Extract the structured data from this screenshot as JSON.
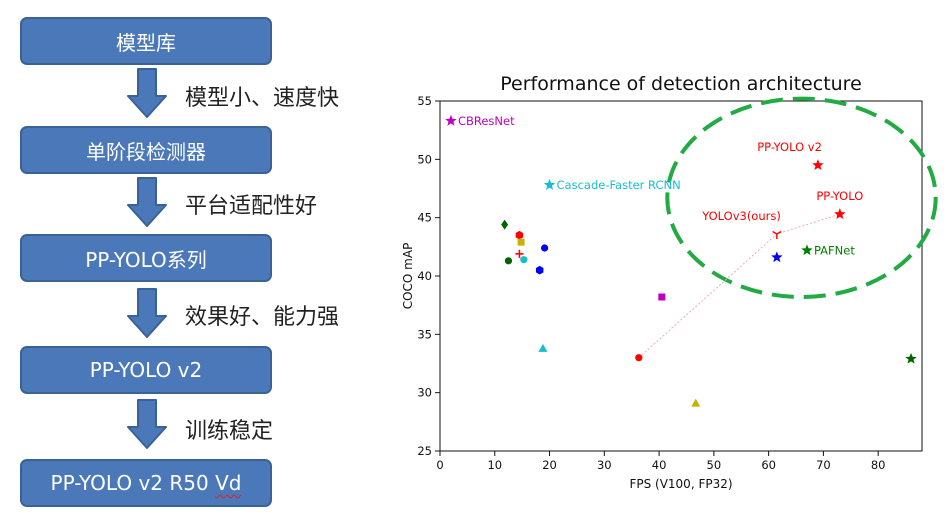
{
  "flow": {
    "steps": [
      {
        "label": "模型库"
      },
      {
        "label": "单阶段检测器"
      },
      {
        "label": "PP-YOLO系列"
      },
      {
        "label": "PP-YOLO v2"
      },
      {
        "label": "PP-YOLO v2 R50",
        "suffix": "Vd"
      }
    ],
    "notes": [
      "模型小、速度快",
      "平台适配性好",
      "效果好、能力强",
      "训练稳定"
    ],
    "colors": {
      "box_fill": "#4a78b8",
      "box_border": "#3b6297",
      "arrow_fill": "#4a78b8"
    }
  },
  "chart_data": {
    "type": "scatter",
    "title": "Performance of detection architecture",
    "xlabel": "FPS (V100, FP32)",
    "ylabel": "COCO mAP",
    "xlim": [
      0,
      88
    ],
    "ylim": [
      25,
      55
    ],
    "xticks": [
      0,
      10,
      20,
      30,
      40,
      50,
      60,
      70,
      80
    ],
    "yticks": [
      25,
      30,
      35,
      40,
      45,
      50,
      55
    ],
    "grid": false,
    "points": [
      {
        "x": 2,
        "y": 53.3,
        "color": "#c000c0",
        "marker": "star",
        "label": "CBResNet",
        "label_pos": "right"
      },
      {
        "x": 20,
        "y": 47.8,
        "color": "#17becf",
        "marker": "star",
        "label": "Cascade-Faster RCNN",
        "label_pos": "right"
      },
      {
        "x": 69,
        "y": 49.5,
        "color": "#ff0000",
        "marker": "star",
        "label": "PP-YOLO v2",
        "label_pos": "above-left"
      },
      {
        "x": 73,
        "y": 45.3,
        "color": "#ff0000",
        "marker": "star",
        "label": "PP-YOLO",
        "label_pos": "above"
      },
      {
        "x": 61.5,
        "y": 43.6,
        "color": "#ff0000",
        "marker": "tri_down",
        "label": "YOLOv3(ours)",
        "label_pos": "above-left"
      },
      {
        "x": 67,
        "y": 42.2,
        "color": "#008000",
        "marker": "star",
        "label": "PAFNet",
        "label_pos": "right"
      },
      {
        "x": 61.5,
        "y": 41.6,
        "color": "#0000ff",
        "marker": "star"
      },
      {
        "x": 86,
        "y": 32.9,
        "color": "#006400",
        "marker": "star"
      },
      {
        "x": 11.8,
        "y": 44.4,
        "color": "#006400",
        "marker": "diamond"
      },
      {
        "x": 14.5,
        "y": 43.5,
        "color": "#ff0000",
        "marker": "hexagon"
      },
      {
        "x": 14.8,
        "y": 42.9,
        "color": "#c8b400",
        "marker": "square"
      },
      {
        "x": 14.5,
        "y": 41.9,
        "color": "#ff0000",
        "marker": "plus"
      },
      {
        "x": 12.5,
        "y": 41.3,
        "color": "#006400",
        "marker": "circle"
      },
      {
        "x": 15.3,
        "y": 41.4,
        "color": "#17becf",
        "marker": "circle"
      },
      {
        "x": 19.1,
        "y": 42.4,
        "color": "#0000ff",
        "marker": "circle"
      },
      {
        "x": 18.2,
        "y": 40.5,
        "color": "#0000ff",
        "marker": "hexagon"
      },
      {
        "x": 40.5,
        "y": 38.2,
        "color": "#c000c0",
        "marker": "square"
      },
      {
        "x": 18.8,
        "y": 33.8,
        "color": "#17becf",
        "marker": "triangle"
      },
      {
        "x": 36.3,
        "y": 33.0,
        "color": "#ff0000",
        "marker": "circle"
      },
      {
        "x": 46.7,
        "y": 29.1,
        "color": "#c8b400",
        "marker": "triangle"
      }
    ],
    "pink_line": [
      [
        36.3,
        33.0
      ],
      [
        61.5,
        43.6
      ],
      [
        73,
        45.3
      ]
    ],
    "highlight_ellipse": {
      "cx": 66,
      "cy": 46.7,
      "rx": 24.5,
      "ry": 8.5,
      "color": "#22aa44",
      "style": "dashed"
    }
  }
}
